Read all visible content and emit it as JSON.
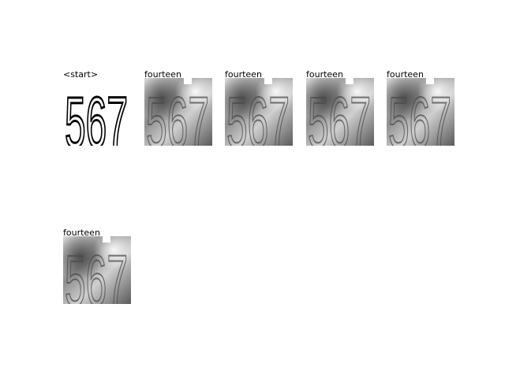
{
  "panels": [
    {
      "caption": "<start>",
      "digits": "567",
      "style": "clean"
    },
    {
      "caption": "fourteen",
      "digits": "567",
      "style": "noisy"
    },
    {
      "caption": "fourteen",
      "digits": "567",
      "style": "noisy"
    },
    {
      "caption": "fourteen",
      "digits": "567",
      "style": "noisy"
    },
    {
      "caption": "fourteen",
      "digits": "567",
      "style": "noisy"
    },
    {
      "caption": "fourteen",
      "digits": "567",
      "style": "noisy"
    }
  ]
}
